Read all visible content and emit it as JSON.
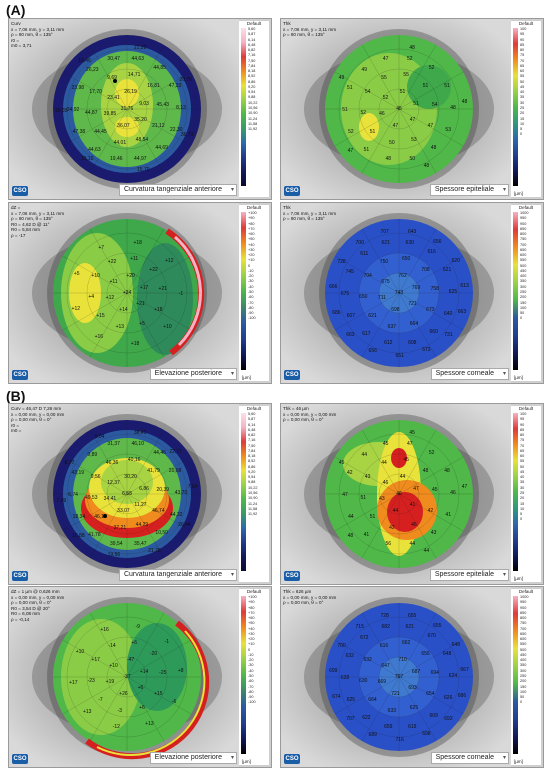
{
  "labels": {
    "a": "(A)",
    "b": "(B)"
  },
  "captions": {
    "curv": "Curvatura tangenziale anteriore",
    "epi": "Spessore epiteliale",
    "elev": "Elevazione posteriore",
    "corn": "Spessore corneale"
  },
  "logo": "CSO",
  "scale_title": "Default",
  "scale_units": {
    "curv": "",
    "epi": "[µm]",
    "elev": "[µm]",
    "corn": "[µm]"
  },
  "scales": {
    "curv": "5,60\n5,87\n6,14\n6,48\n6,82\n7,16\n7,50\n7,84\n8,18\n8,52\n8,86\n9,20\n9,54\n9,88\n10,22\n10,56\n10,90\n11,24\n11,58\n11,92",
    "epi": "100\n95\n90\n85\n80\n75\n70\n65\n60\n55\n50\n45\n40\n35\n30\n25\n20\n15\n10\n5\n0",
    "elev": "+100\n+90\n+80\n+70\n+60\n+50\n+40\n+30\n+20\n+10\n0\n-10\n-20\n-30\n-40\n-50\n-60\n-70\n-80\n-90\n-100",
    "corn": "1000\n950\n900\n850\n800\n750\n700\n650\n600\n550\n500\n450\n400\n350\n300\n250\n200\n150\n100\n50\n0"
  },
  "info": {
    "a_curv": "Curv\nx = 7,06 mm, y = 3,11 mm\nρ = 80 mm, θ = 135°\nr0 = \nm0 = 3,71",
    "a_epi": "Thk\nx = 7,06 mm, y = 3,11 mm\nρ = 80 mm, θ = 135°",
    "a_elev": "dZ =\nx = 7,06 mm, y = 3,11 mm\nρ = 80 mm, θ = 135°\nR0 = 4,62 D @ 11°\nR0 = 5,84 mm\nρ = -17",
    "a_corn": "Thk\nx = 7,06 mm, y = 3,11 mm\nρ = 80 mm, θ = 135°",
    "b_curv": "Curv = 46,47 D 7,26 mm\nx = 0,00 mm, y = 0,00 mm\nρ = 0,00 mm, θ = 0°\nr0 = \nm0 = ",
    "b_epi": "Thk = 46 µm\nx = 0,00 mm, y = 0,00 mm\nρ = 0,00 mm, θ = 0°",
    "b_elev": "dZ = 1 µm @ 0,626 mm\nx = 0,00 mm, y = 0,00 mm\nρ = 0,00 mm, θ = 0°\nR0 = 3,54 D @ 20°\nR0 = 6,08 mm\nρ = -0,14",
    "b_corn": "Thk = 626 µm\nx = 0,00 mm, y = 0,00 mm\nρ = 0,00 mm, θ = 0°"
  },
  "values": {
    "a_curv": [
      "31,76",
      "26,19",
      "9,03",
      "35,20",
      "36,07",
      "39,85",
      "23,41",
      "14,71",
      "16,81",
      "45,43",
      "21,12",
      "48,54",
      "44,01",
      "44,45",
      "44,87",
      "17,70",
      "9,69",
      "44,63",
      "44,85",
      "47,33",
      "8,13",
      "22,30",
      "44,69",
      "44,97",
      "19,46",
      "44,63",
      "47,38",
      "24,92",
      "23,98",
      "26,23",
      "30,47",
      "21,22",
      "20,76",
      "36,73",
      "15,70",
      "12,10",
      "15,03",
      "13,46"
    ],
    "a_epi": [
      "45",
      "51",
      "51",
      "47",
      "47",
      "46",
      "52",
      "55",
      "51",
      "54",
      "47",
      "53",
      "50",
      "51",
      "52",
      "54",
      "55",
      "52",
      "52",
      "51",
      "48",
      "53",
      "48",
      "50",
      "48",
      "51",
      "52",
      "51",
      "51",
      "49",
      "47",
      "48",
      "48",
      "48",
      "47",
      "49"
    ],
    "a_elev": [
      "+24",
      "+20",
      "+17",
      "+21",
      "+14",
      "+12",
      "+11",
      "+11",
      "+22",
      "+21",
      "+18",
      "+5",
      "+13",
      "+15",
      "+4",
      "+10",
      "+22",
      "+18",
      "+12",
      "-1",
      "+10",
      "+18",
      "+16",
      "+12",
      "+5",
      "+7"
    ],
    "a_corn": [
      "743",
      "762",
      "769",
      "721",
      "698",
      "711",
      "675",
      "650",
      "708",
      "758",
      "673",
      "664",
      "637",
      "621",
      "650",
      "704",
      "750",
      "630",
      "616",
      "621",
      "625",
      "640",
      "660",
      "608",
      "612",
      "617",
      "607",
      "675",
      "745",
      "611",
      "621",
      "643",
      "656",
      "620",
      "613",
      "663",
      "731",
      "673",
      "651",
      "656",
      "663",
      "686",
      "666",
      "728",
      "700",
      "707"
    ],
    "b_curv": [
      "6,58",
      "30,20",
      "6,86",
      "11,27",
      "33,07",
      "34,41",
      "12,37",
      "40,16",
      "41,79",
      "20,39",
      "46,74",
      "44,29",
      "37,21",
      "46,12",
      "49,53",
      "9,56",
      "46,36",
      "46,10",
      "44,46",
      "20,08",
      "43,70",
      "44,32",
      "10,50",
      "35,47",
      "39,54",
      "41,78",
      "18,34",
      "6,74",
      "43,19",
      "9,89",
      "31,37",
      "38,41",
      "22,77",
      "7,54",
      "26,44",
      "21,75",
      "19,56",
      "10,88",
      "7,09",
      "8,77",
      "9,04"
    ],
    "b_epi": [
      "46",
      "44",
      "47",
      "41",
      "44",
      "43",
      "46",
      "45",
      "48",
      "45",
      "42",
      "46",
      "42",
      "51",
      "51",
      "43",
      "44",
      "47",
      "52",
      "48",
      "46",
      "41",
      "43",
      "44",
      "56",
      "41",
      "44",
      "47",
      "42",
      "44",
      "45",
      "45",
      "47",
      "44",
      "48",
      "45"
    ],
    "b_elev": [
      "-37",
      "-47",
      "+14",
      "+6",
      "+26",
      "+19",
      "+10",
      "+6",
      "-20",
      "-25",
      "+15",
      "+6",
      "-3",
      "-7",
      "-23",
      "+17",
      "-14",
      "-9",
      "-1",
      "+8",
      "-6",
      "+13",
      "-12",
      "+13",
      "+17",
      "+10",
      "+16"
    ],
    "b_corn": [
      "707",
      "710",
      "687",
      "693",
      "721",
      "669",
      "647",
      "662",
      "656",
      "694",
      "654",
      "625",
      "633",
      "664",
      "630",
      "632",
      "616",
      "621",
      "670",
      "648",
      "624",
      "626",
      "609",
      "619",
      "659",
      "622",
      "625",
      "628",
      "632",
      "672",
      "682",
      "655",
      "655",
      "648",
      "667",
      "686",
      "692",
      "698",
      "716",
      "689",
      "707",
      "674",
      "699",
      "700",
      "715",
      "728"
    ]
  },
  "colors": {
    "outer": "#1a1a6e",
    "blue": "#2c5aa0",
    "green": "#5fb84a",
    "yellow": "#e8e23a",
    "orange": "#f08c1e",
    "red": "#d62020",
    "gray": "#c8c8c8"
  }
}
